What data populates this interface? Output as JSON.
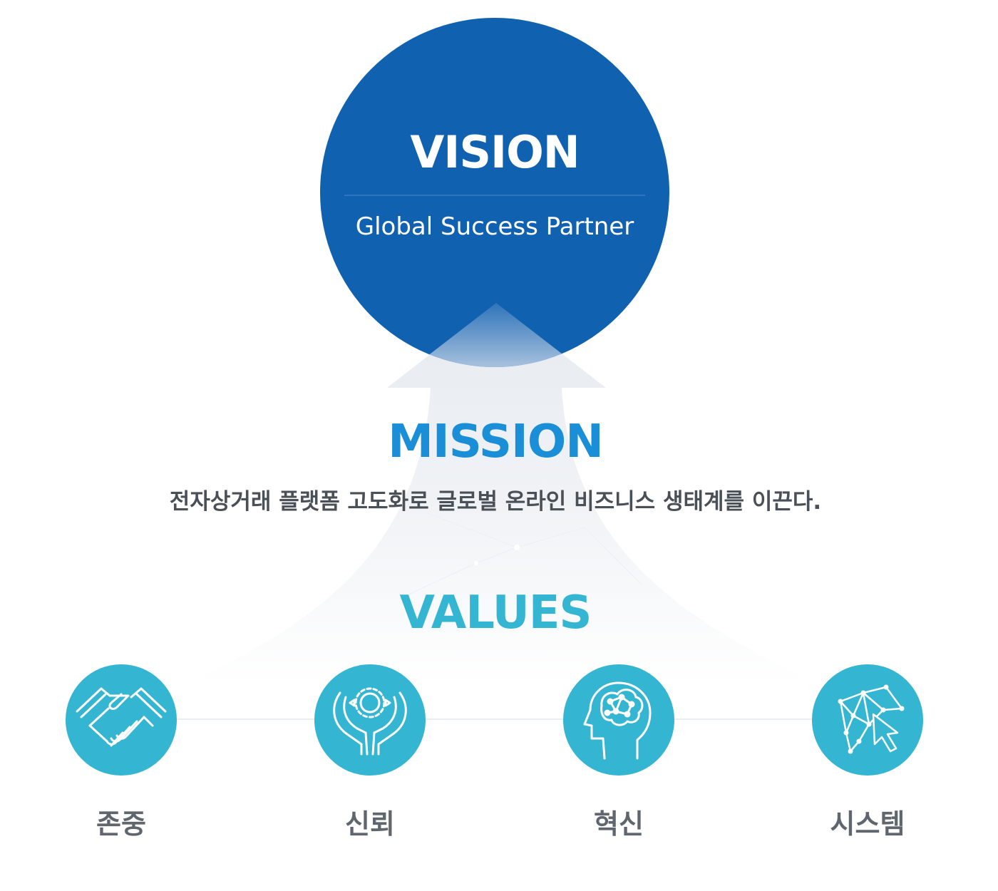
{
  "vision": {
    "title": "VISION",
    "subtitle": "Global Success Partner"
  },
  "mission": {
    "title": "MISSION",
    "text": "전자상거래 플랫폼 고도화로 글로벌 온라인 비즈니스 생태계를 이끈다."
  },
  "values": {
    "title": "VALUES",
    "items": [
      {
        "label": "존중",
        "icon": "handshake-icon"
      },
      {
        "label": "신뢰",
        "icon": "hands-holding-gear-icon"
      },
      {
        "label": "혁신",
        "icon": "brain-head-icon"
      },
      {
        "label": "시스템",
        "icon": "network-cursor-icon"
      }
    ]
  },
  "colors": {
    "vision_blue": "#1161b1",
    "mission_blue": "#1a8fd8",
    "values_cyan": "#34b6d2",
    "text_gray": "#4a5057"
  }
}
